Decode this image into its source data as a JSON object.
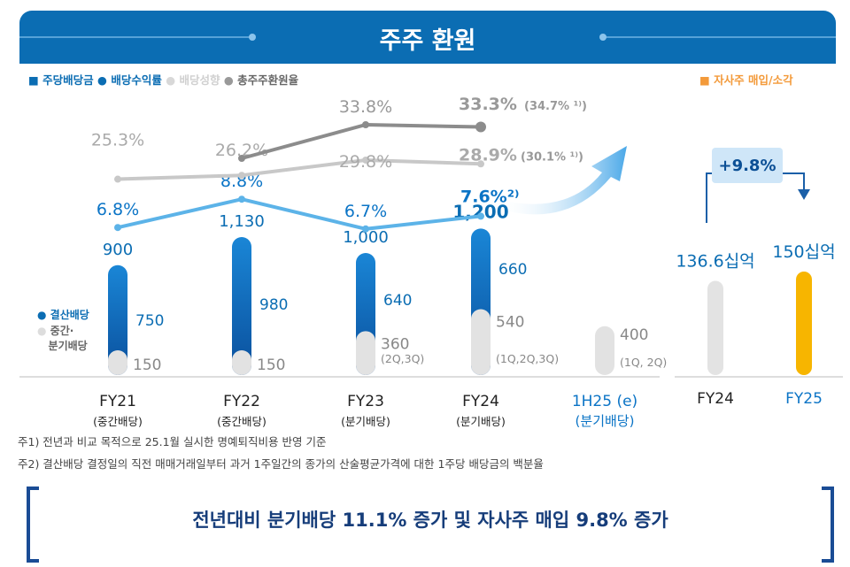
{
  "title": "주주 환원",
  "legend": {
    "dps": "주당배당금",
    "yield": "배당수익률",
    "payout": "배당성향",
    "total": "총주주환원율",
    "buyback": "자사주 매입/소각"
  },
  "bar_legend": {
    "final": "결산배당",
    "interim": "중간·\n분기배당",
    "interim_1": "중간·",
    "interim_2": "분기배당"
  },
  "colors": {
    "header": "#0b6db3",
    "dps": "#0b74c6",
    "yield": "#5cb3e8",
    "payout": "#c8c8c8",
    "total": "#8c8c8c",
    "buyback": "#f39a3a",
    "fy25": "#f7b500",
    "fy24_buyback": "#e3e3e3"
  },
  "chart_data": [
    {
      "type": "bar",
      "categories": [
        "FY21",
        "FY22",
        "FY23",
        "FY24",
        "1H25 (e)"
      ],
      "category_sub": [
        "(중간배당)",
        "(중간배당)",
        "(분기배당)",
        "(분기배당)",
        "(분기배당)"
      ],
      "series": [
        {
          "name": "결산배당",
          "values": [
            750,
            980,
            640,
            660,
            null
          ]
        },
        {
          "name": "중간·분기배당",
          "values": [
            150,
            150,
            360,
            540,
            400
          ]
        }
      ],
      "totals": [
        900,
        1130,
        1000,
        1200,
        null
      ],
      "totals_labels": [
        "900",
        "1,130",
        "1,000",
        "1,200",
        ""
      ],
      "final_labels": [
        "750",
        "980",
        "640",
        "660",
        ""
      ],
      "interim_labels": [
        "150",
        "150",
        "360",
        "540",
        "400"
      ],
      "interim_notes": [
        "",
        "",
        "(2Q,3Q)",
        "(1Q,2Q,3Q)",
        "(1Q, 2Q)"
      ]
    },
    {
      "type": "line",
      "categories": [
        "FY21",
        "FY22",
        "FY23",
        "FY24"
      ],
      "series": [
        {
          "name": "배당수익률",
          "values": [
            6.8,
            8.8,
            6.7,
            7.6
          ],
          "labels": [
            "6.8%",
            "8.8%",
            "6.7%",
            "7.6%²⁾"
          ]
        },
        {
          "name": "배당성향",
          "values": [
            25.3,
            26.2,
            29.8,
            28.9
          ],
          "labels": [
            "25.3%",
            "26.2%",
            "29.8%",
            "28.9%"
          ],
          "notes": [
            "",
            "",
            "",
            "(30.1% ¹⁾)"
          ]
        },
        {
          "name": "총주주환원율",
          "values": [
            null,
            26.2,
            33.8,
            33.3
          ],
          "labels": [
            "",
            "",
            "33.8%",
            "33.3%"
          ],
          "notes": [
            "",
            "",
            "",
            "(34.7% ¹⁾)"
          ]
        }
      ]
    },
    {
      "type": "bar",
      "title": "자사주 매입/소각",
      "categories": [
        "FY24",
        "FY25"
      ],
      "values": [
        136.6,
        150
      ],
      "labels": [
        "136.6십억",
        "150십억"
      ],
      "growth": "+9.8%"
    }
  ],
  "notes": [
    "주1) 전년과 비교 목적으로 25.1월 실시한 명예퇴직비용 반영 기준",
    "주2) 결산배당 결정일의 직전 매매거래일부터 과거 1주일간의 종가의 산술평균가격에 대한 1주당 배당금의 백분율"
  ],
  "banner": "전년대비 분기배당 11.1% 증가 및 자사주 매입 9.8% 증가"
}
